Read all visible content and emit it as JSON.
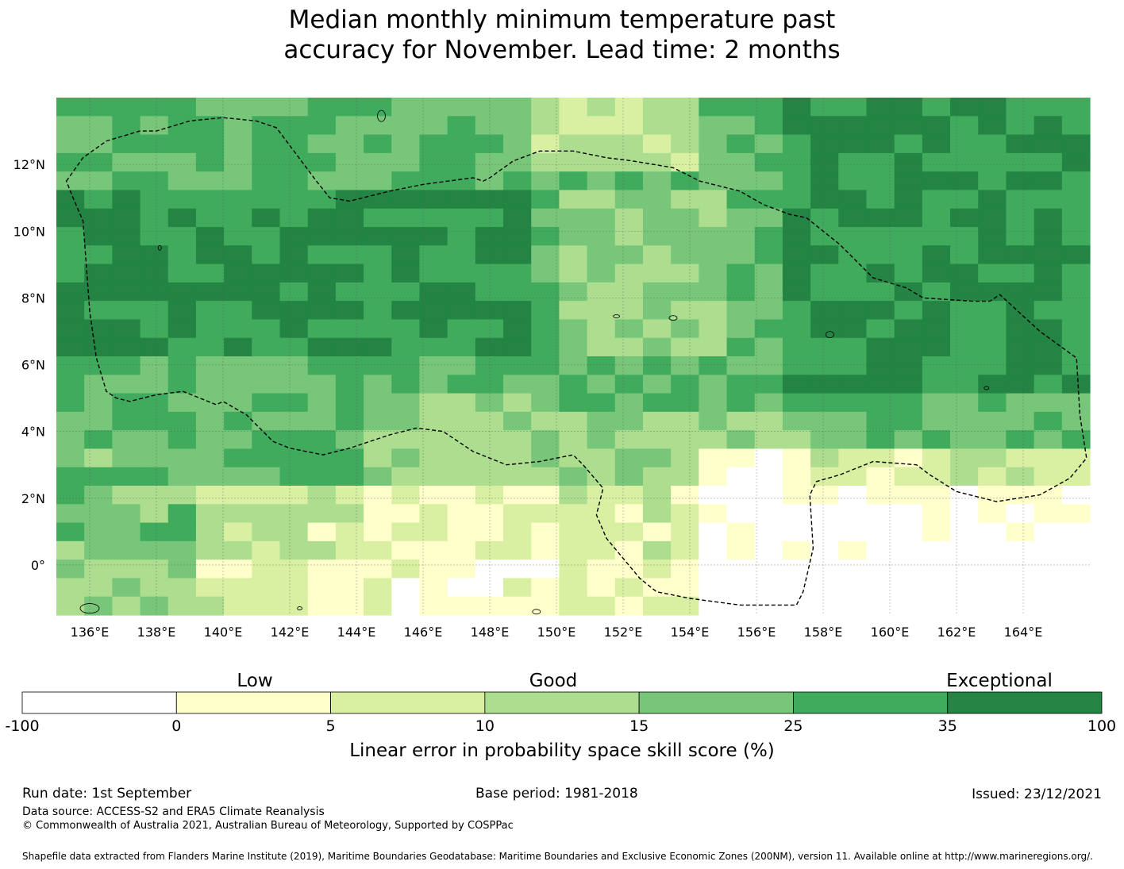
{
  "title_line1": "Median monthly minimum temperature past",
  "title_line2": "accuracy for November. Lead time: 2 months",
  "map": {
    "lon_range": [
      135,
      166
    ],
    "lat_range": [
      -1.5,
      14
    ],
    "cell_deg": 0.833,
    "grid_cols": 37,
    "grid_rows": 28,
    "lon_ticks": [
      "136°E",
      "138°E",
      "140°E",
      "142°E",
      "144°E",
      "146°E",
      "148°E",
      "150°E",
      "152°E",
      "154°E",
      "156°E",
      "158°E",
      "160°E",
      "162°E",
      "164°E"
    ],
    "lon_tick_values": [
      136,
      138,
      140,
      142,
      144,
      146,
      148,
      150,
      152,
      154,
      156,
      158,
      160,
      162,
      164
    ],
    "lat_ticks": [
      "12°N",
      "10°N",
      "8°N",
      "6°N",
      "4°N",
      "2°N",
      "0°"
    ],
    "lat_tick_values": [
      12,
      10,
      8,
      6,
      4,
      2,
      0
    ],
    "gridlines": true,
    "eez_boundary": [
      [
        135.3,
        11.5
      ],
      [
        135.8,
        12.2
      ],
      [
        136.5,
        12.7
      ],
      [
        137.5,
        13.0
      ],
      [
        138.0,
        13.0
      ],
      [
        139.0,
        13.3
      ],
      [
        140.0,
        13.4
      ],
      [
        141.0,
        13.3
      ],
      [
        141.6,
        13.1
      ],
      [
        142.2,
        12.3
      ],
      [
        142.8,
        11.5
      ],
      [
        143.2,
        11.0
      ],
      [
        143.8,
        10.9
      ],
      [
        145.0,
        11.2
      ],
      [
        146.0,
        11.4
      ],
      [
        147.5,
        11.6
      ],
      [
        147.8,
        11.5
      ],
      [
        148.0,
        11.6
      ],
      [
        148.7,
        12.1
      ],
      [
        149.5,
        12.4
      ],
      [
        150.5,
        12.4
      ],
      [
        151.5,
        12.2
      ],
      [
        152.3,
        12.1
      ],
      [
        153.5,
        11.9
      ],
      [
        154.3,
        11.5
      ],
      [
        155.5,
        11.2
      ],
      [
        156.2,
        10.8
      ],
      [
        157.0,
        10.5
      ],
      [
        157.5,
        10.4
      ],
      [
        158.5,
        9.6
      ],
      [
        159.5,
        8.6
      ],
      [
        160.5,
        8.3
      ],
      [
        161.0,
        8.0
      ],
      [
        162.5,
        7.9
      ],
      [
        163.0,
        7.9
      ],
      [
        163.3,
        8.1
      ],
      [
        164.5,
        7.0
      ],
      [
        165.6,
        6.2
      ],
      [
        165.7,
        4.5
      ],
      [
        165.9,
        3.2
      ],
      [
        165.4,
        2.6
      ],
      [
        164.5,
        2.1
      ],
      [
        163.2,
        1.9
      ],
      [
        162.0,
        2.2
      ],
      [
        161.2,
        2.7
      ],
      [
        160.8,
        3.0
      ],
      [
        159.5,
        3.1
      ],
      [
        158.5,
        2.7
      ],
      [
        157.8,
        2.5
      ],
      [
        157.6,
        2.1
      ],
      [
        157.7,
        0.5
      ],
      [
        157.4,
        -0.8
      ],
      [
        157.2,
        -1.2
      ],
      [
        155.5,
        -1.2
      ],
      [
        154.0,
        -1.0
      ],
      [
        153.0,
        -0.8
      ],
      [
        152.5,
        -0.4
      ],
      [
        151.5,
        0.8
      ],
      [
        151.2,
        1.5
      ],
      [
        151.4,
        2.3
      ],
      [
        150.8,
        3.0
      ],
      [
        150.5,
        3.3
      ],
      [
        149.5,
        3.1
      ],
      [
        148.5,
        3.0
      ],
      [
        147.5,
        3.4
      ],
      [
        146.6,
        4.0
      ],
      [
        145.8,
        4.1
      ],
      [
        145.0,
        3.9
      ],
      [
        143.8,
        3.5
      ],
      [
        143.0,
        3.3
      ],
      [
        142.0,
        3.5
      ],
      [
        141.5,
        3.7
      ],
      [
        140.7,
        4.5
      ],
      [
        140.0,
        4.9
      ],
      [
        139.8,
        4.8
      ],
      [
        139.3,
        5.0
      ],
      [
        138.8,
        5.2
      ],
      [
        138.0,
        5.1
      ],
      [
        137.2,
        4.9
      ],
      [
        136.8,
        5.0
      ],
      [
        136.5,
        5.2
      ],
      [
        136.2,
        6.2
      ],
      [
        136.0,
        7.6
      ],
      [
        135.8,
        10.3
      ],
      [
        135.5,
        11.0
      ],
      [
        135.3,
        11.5
      ]
    ]
  },
  "colorbar": {
    "quality_labels": [
      "Low",
      "Good",
      "Exceptional"
    ],
    "tick_labels": [
      "-100",
      "0",
      "5",
      "10",
      "15",
      "25",
      "35",
      "100"
    ],
    "colors": [
      "#ffffff",
      "#ffffcc",
      "#d9f0a3",
      "#addd8e",
      "#78c679",
      "#41ab5d",
      "#238443"
    ],
    "label": "Linear error in probability space skill score (%)"
  },
  "footer": {
    "run_date": "Run date: 1st September",
    "base_period": "Base period: 1981-2018",
    "issued": "Issued: 23/12/2021",
    "data_source": "Data source: ACCESS-S2 and ERA5 Climate Reanalysis",
    "copyright": "© Commonwealth of Australia 2021, Australian Bureau of Meteorology, Supported by COSPPac",
    "shapefile": "Shapefile data extracted from Flanders Marine Institute (2019), Maritime Boundaries Geodatabase: Maritime Boundaries and Exclusive Economic Zones (200NM), version 11. Available online at http://www.marineregions.org/."
  }
}
